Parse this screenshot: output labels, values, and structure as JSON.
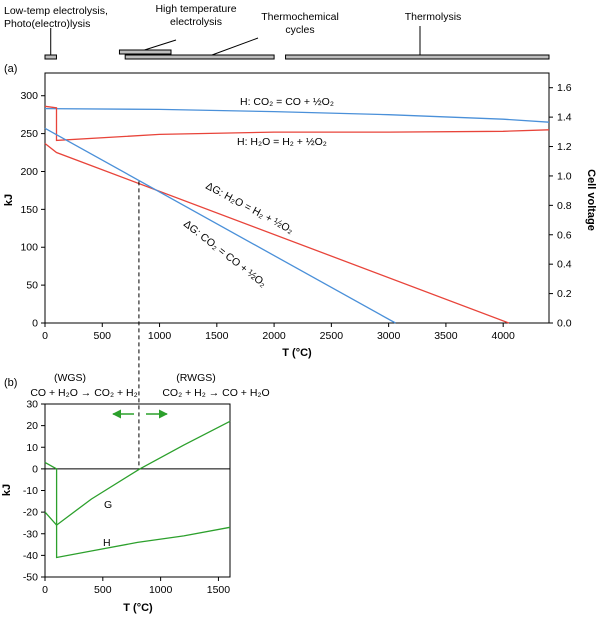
{
  "chart_data": [
    {
      "type": "ranges",
      "ranges": [
        {
          "label_lines": [
            "Low-temp electrolysis,",
            "Photo(electro)lysis"
          ],
          "x_range": [
            0,
            100
          ]
        },
        {
          "label_lines": [
            "High temperature",
            "electrolysis"
          ],
          "x_range": [
            650,
            1100
          ]
        },
        {
          "label_lines": [
            "Thermochemical",
            "cycles"
          ],
          "x_range": [
            700,
            2000
          ]
        },
        {
          "label_lines": [
            "Thermolysis"
          ],
          "x_range": [
            2100,
            4400
          ]
        }
      ]
    },
    {
      "type": "line",
      "panel_label": "(a)",
      "xlabel": "T (°C)",
      "ylabel": "kJ",
      "y2label": "Cell voltage",
      "xlim": [
        0,
        4400
      ],
      "ylim": [
        0,
        330
      ],
      "y2lim": [
        0,
        1.7
      ],
      "x_ticks": [
        0,
        500,
        1000,
        1500,
        2000,
        2500,
        3000,
        3500,
        4000
      ],
      "y_ticks": [
        0,
        50,
        100,
        150,
        200,
        250,
        300
      ],
      "y2_ticks": [
        "0.0",
        "0.2",
        "0.4",
        "0.6",
        "0.8",
        "1.0",
        "1.2",
        "1.4",
        "1.6"
      ],
      "series": [
        {
          "color": "#4a90d9",
          "label": "H: CO₂ = CO + ½O₂",
          "x": [
            0,
            1000,
            2000,
            3000,
            4000,
            4400
          ],
          "y": [
            283,
            282,
            279,
            275,
            269,
            265
          ]
        },
        {
          "color": "#e8443a",
          "label": "H: H₂O = H₂ + ½O₂",
          "x": [
            0,
            100,
            100,
            1000,
            2000,
            3000,
            4000,
            4400
          ],
          "y": [
            286,
            284,
            241,
            249,
            252,
            252,
            253,
            255
          ]
        },
        {
          "color": "#e8443a",
          "label": "ΔG: H₂O = H₂ + ½O₂",
          "x": [
            0,
            100,
            4050
          ],
          "y": [
            237,
            225,
            0
          ]
        },
        {
          "color": "#4a90d9",
          "label": "ΔG: CO₂ = CO + ½O₂",
          "x": [
            0,
            3060
          ],
          "y": [
            257,
            0
          ]
        }
      ],
      "crossover": {
        "x": 820,
        "y": 187
      }
    },
    {
      "type": "line",
      "panel_label": "(b)",
      "xlabel": "T (°C)",
      "ylabel": "kJ",
      "xlim": [
        0,
        1600
      ],
      "ylim": [
        -50,
        30
      ],
      "x_ticks": [
        0,
        500,
        1000,
        1500
      ],
      "y_ticks": [
        30,
        20,
        10,
        0,
        -10,
        -20,
        -30,
        -40,
        -50
      ],
      "crossover_x": 820,
      "left_region": {
        "title": "(WGS)",
        "reaction": "CO + H₂O → CO₂ + H₂"
      },
      "right_region": {
        "title": "(RWGS)",
        "reaction": "CO₂ + H₂ → CO + H₂O"
      },
      "series": [
        {
          "color": "#2ca02c",
          "label": "G",
          "x": [
            0,
            100,
            100,
            400,
            820,
            1200,
            1600
          ],
          "y": [
            3,
            0,
            -26,
            -14,
            0,
            11,
            22
          ]
        },
        {
          "color": "#2ca02c",
          "label": "H",
          "x": [
            0,
            100,
            100,
            400,
            800,
            1200,
            1600
          ],
          "y": [
            -20,
            -26,
            -41,
            -38,
            -34,
            -31,
            -27
          ]
        }
      ]
    }
  ]
}
